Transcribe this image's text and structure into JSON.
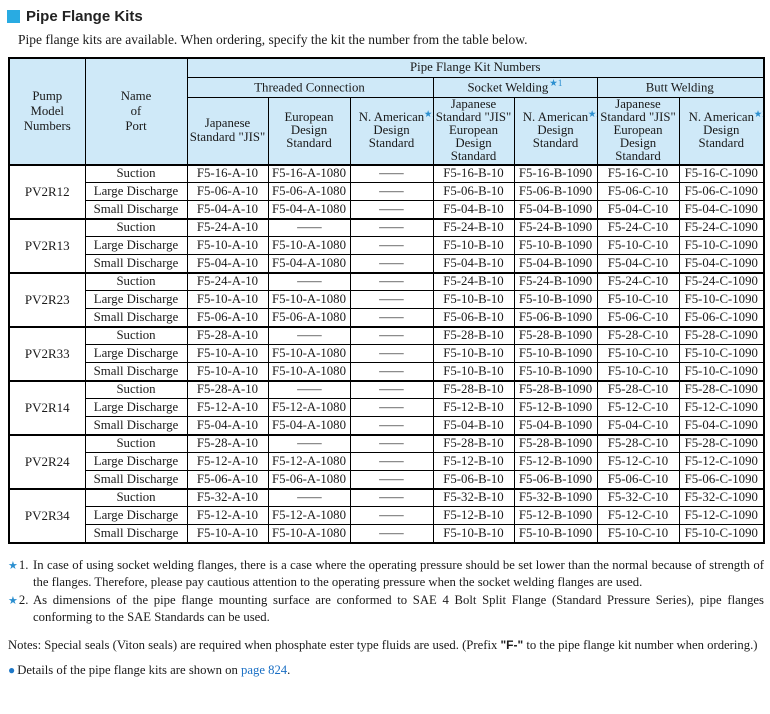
{
  "colors": {
    "title_square": "#29abe2",
    "header_bg": "#cfe9f8",
    "star_blue": "#2b8fd0",
    "link_blue": "#1a6fc4",
    "bullet_blue": "#1e78c8"
  },
  "title": "Pipe Flange Kits",
  "subtitle": "Pipe flange kits are available.  When ordering, specify the kit the number from the table below.",
  "table": {
    "header": {
      "pump": "Pump\nModel\nNumbers",
      "port": "Name\nof\nPort",
      "kit_numbers": "Pipe Flange Kit Numbers",
      "groups": [
        {
          "label": "Threaded Connection",
          "sup": ""
        },
        {
          "label": "Socket Welding",
          "sup": "★1"
        },
        {
          "label": "Butt Welding",
          "sup": ""
        }
      ],
      "subcols": [
        {
          "lines": "Japanese\nStandard \"JIS\"",
          "sup": ""
        },
        {
          "lines": "European\nDesign\nStandard",
          "sup": ""
        },
        {
          "lines": "N. American\nDesign\nStandard",
          "sup": "★2"
        },
        {
          "lines": "Japanese\nStandard \"JIS\"\nEuropean\nDesign\nStandard",
          "sup": ""
        },
        {
          "lines": "N. American\nDesign\nStandard",
          "sup": "★2"
        },
        {
          "lines": "Japanese\nStandard \"JIS\"\nEuropean\nDesign\nStandard",
          "sup": ""
        },
        {
          "lines": "N. American\nDesign\nStandard",
          "sup": "★2"
        }
      ]
    },
    "groups": [
      {
        "model": "PV2R12",
        "rows": [
          [
            "Suction",
            "F5-16-A-10",
            "F5-16-A-1080",
            "—",
            "F5-16-B-10",
            "F5-16-B-1090",
            "F5-16-C-10",
            "F5-16-C-1090"
          ],
          [
            "Large Discharge",
            "F5-06-A-10",
            "F5-06-A-1080",
            "—",
            "F5-06-B-10",
            "F5-06-B-1090",
            "F5-06-C-10",
            "F5-06-C-1090"
          ],
          [
            "Small Discharge",
            "F5-04-A-10",
            "F5-04-A-1080",
            "—",
            "F5-04-B-10",
            "F5-04-B-1090",
            "F5-04-C-10",
            "F5-04-C-1090"
          ]
        ]
      },
      {
        "model": "PV2R13",
        "rows": [
          [
            "Suction",
            "F5-24-A-10",
            "—",
            "—",
            "F5-24-B-10",
            "F5-24-B-1090",
            "F5-24-C-10",
            "F5-24-C-1090"
          ],
          [
            "Large Discharge",
            "F5-10-A-10",
            "F5-10-A-1080",
            "—",
            "F5-10-B-10",
            "F5-10-B-1090",
            "F5-10-C-10",
            "F5-10-C-1090"
          ],
          [
            "Small Discharge",
            "F5-04-A-10",
            "F5-04-A-1080",
            "—",
            "F5-04-B-10",
            "F5-04-B-1090",
            "F5-04-C-10",
            "F5-04-C-1090"
          ]
        ]
      },
      {
        "model": "PV2R23",
        "rows": [
          [
            "Suction",
            "F5-24-A-10",
            "—",
            "—",
            "F5-24-B-10",
            "F5-24-B-1090",
            "F5-24-C-10",
            "F5-24-C-1090"
          ],
          [
            "Large Discharge",
            "F5-10-A-10",
            "F5-10-A-1080",
            "—",
            "F5-10-B-10",
            "F5-10-B-1090",
            "F5-10-C-10",
            "F5-10-C-1090"
          ],
          [
            "Small Discharge",
            "F5-06-A-10",
            "F5-06-A-1080",
            "—",
            "F5-06-B-10",
            "F5-06-B-1090",
            "F5-06-C-10",
            "F5-06-C-1090"
          ]
        ]
      },
      {
        "model": "PV2R33",
        "rows": [
          [
            "Suction",
            "F5-28-A-10",
            "—",
            "—",
            "F5-28-B-10",
            "F5-28-B-1090",
            "F5-28-C-10",
            "F5-28-C-1090"
          ],
          [
            "Large Discharge",
            "F5-10-A-10",
            "F5-10-A-1080",
            "—",
            "F5-10-B-10",
            "F5-10-B-1090",
            "F5-10-C-10",
            "F5-10-C-1090"
          ],
          [
            "Small Discharge",
            "F5-10-A-10",
            "F5-10-A-1080",
            "—",
            "F5-10-B-10",
            "F5-10-B-1090",
            "F5-10-C-10",
            "F5-10-C-1090"
          ]
        ]
      },
      {
        "model": "PV2R14",
        "rows": [
          [
            "Suction",
            "F5-28-A-10",
            "—",
            "—",
            "F5-28-B-10",
            "F5-28-B-1090",
            "F5-28-C-10",
            "F5-28-C-1090"
          ],
          [
            "Large Discharge",
            "F5-12-A-10",
            "F5-12-A-1080",
            "—",
            "F5-12-B-10",
            "F5-12-B-1090",
            "F5-12-C-10",
            "F5-12-C-1090"
          ],
          [
            "Small Discharge",
            "F5-04-A-10",
            "F5-04-A-1080",
            "—",
            "F5-04-B-10",
            "F5-04-B-1090",
            "F5-04-C-10",
            "F5-04-C-1090"
          ]
        ]
      },
      {
        "model": "PV2R24",
        "rows": [
          [
            "Suction",
            "F5-28-A-10",
            "—",
            "—",
            "F5-28-B-10",
            "F5-28-B-1090",
            "F5-28-C-10",
            "F5-28-C-1090"
          ],
          [
            "Large Discharge",
            "F5-12-A-10",
            "F5-12-A-1080",
            "—",
            "F5-12-B-10",
            "F5-12-B-1090",
            "F5-12-C-10",
            "F5-12-C-1090"
          ],
          [
            "Small Discharge",
            "F5-06-A-10",
            "F5-06-A-1080",
            "—",
            "F5-06-B-10",
            "F5-06-B-1090",
            "F5-06-C-10",
            "F5-06-C-1090"
          ]
        ]
      },
      {
        "model": "PV2R34",
        "rows": [
          [
            "Suction",
            "F5-32-A-10",
            "—",
            "—",
            "F5-32-B-10",
            "F5-32-B-1090",
            "F5-32-C-10",
            "F5-32-C-1090"
          ],
          [
            "Large Discharge",
            "F5-12-A-10",
            "F5-12-A-1080",
            "—",
            "F5-12-B-10",
            "F5-12-B-1090",
            "F5-12-C-10",
            "F5-12-C-1090"
          ],
          [
            "Small Discharge",
            "F5-10-A-10",
            "F5-10-A-1080",
            "—",
            "F5-10-B-10",
            "F5-10-B-1090",
            "F5-10-C-10",
            "F5-10-C-1090"
          ]
        ]
      }
    ]
  },
  "footnotes": [
    {
      "star": "★",
      "num": "1.",
      "text": "In case of using socket welding flanges, there is a case where the operating pressure should be set lower than the normal because of strength of the flanges. Therefore, please pay cautious attention to the operating pressure when the socket welding flanges are used."
    },
    {
      "star": "★",
      "num": "2.",
      "text": "As dimensions of the pipe flange mounting surface are conformed to SAE 4 Bolt Split Flange (Standard Pressure Series), pipe flanges conforming to the SAE Standards can be used."
    }
  ],
  "notes": {
    "before": "Notes: Special seals (Viton seals) are required when phosphate ester type fluids are used. (Prefix ",
    "bold": "\"F-\"",
    "after": " to the pipe flange kit number when ordering.)"
  },
  "details": {
    "bullet": "●",
    "text": "Details of the pipe flange kits are shown on ",
    "link": "page 824",
    "period": "."
  }
}
